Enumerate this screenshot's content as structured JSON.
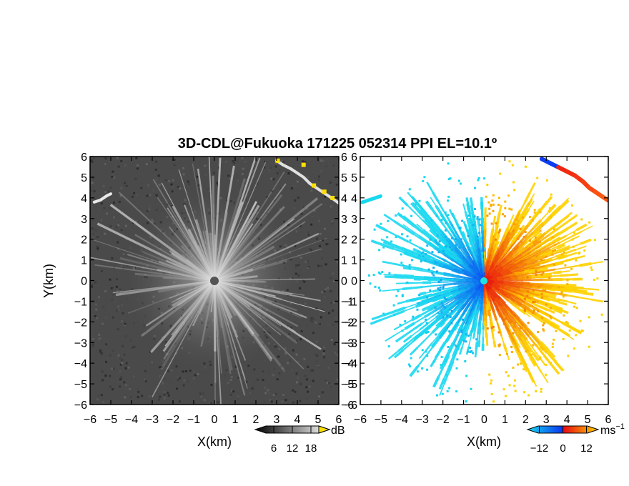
{
  "title": "3D-CDL@Fukuoka 171225 052314 PPI EL=10.1º",
  "colors": {
    "reflectivity_bg": "#4a4a4a",
    "reflectivity_center": "#d8d8d8",
    "highlight": "#ffe000",
    "doppler_neg_far": "#18d8f0",
    "doppler_neg_near": "#0a3cf0",
    "doppler_pos_near": "#e81010",
    "doppler_pos_far": "#ffd200"
  },
  "chart_data": [
    {
      "type": "heatmap",
      "name": "reflectivity",
      "xlabel": "X(km)",
      "ylabel": "Y(km)",
      "xlim": [
        -6,
        6
      ],
      "ylim": [
        -6,
        6
      ],
      "x_ticks": [
        "−6",
        "−5",
        "−4",
        "−3",
        "−2",
        "−1",
        "0",
        "1",
        "2",
        "3",
        "4",
        "5",
        "6"
      ],
      "y_ticks": [
        "6",
        "5",
        "4",
        "3",
        "2",
        "1",
        "0",
        "−1",
        "−2",
        "−3",
        "−4",
        "−5",
        "−6"
      ],
      "colorbar": {
        "unit": "dB",
        "ticks": [
          "6",
          "12",
          "18"
        ],
        "range": [
          0,
          24
        ]
      }
    },
    {
      "type": "heatmap",
      "name": "doppler_velocity",
      "xlabel": "X(km)",
      "xlim": [
        -6,
        6
      ],
      "ylim": [
        -6,
        6
      ],
      "x_ticks": [
        "−6",
        "−5",
        "−4",
        "−3",
        "−2",
        "−1",
        "0",
        "1",
        "2",
        "3",
        "4",
        "5",
        "6"
      ],
      "y_ticks": [
        "6",
        "5",
        "4",
        "3",
        "2",
        "1",
        "0",
        "−1",
        "−2",
        "−3",
        "−4",
        "−5",
        "−6"
      ],
      "colorbar": {
        "unit": "ms",
        "unit_exp": "−1",
        "ticks": [
          "−12",
          "0",
          "12"
        ],
        "range": [
          -18,
          18
        ]
      }
    }
  ]
}
